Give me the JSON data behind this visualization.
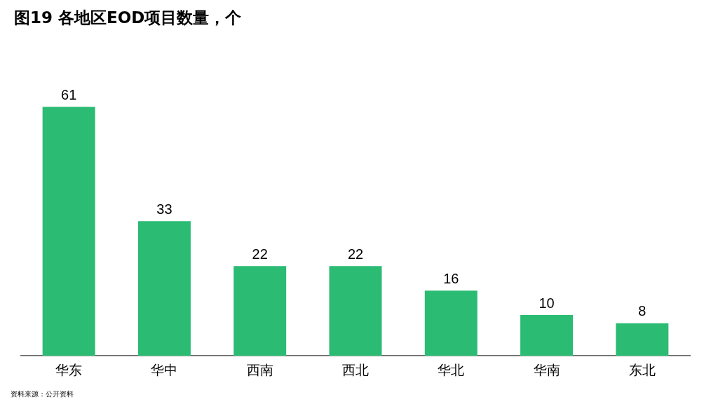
{
  "chart_data": {
    "type": "bar",
    "title": "图19 各地区EOD项目数量，个",
    "categories": [
      "华东",
      "华中",
      "西南",
      "西北",
      "华北",
      "华南",
      "东北"
    ],
    "values": [
      61,
      33,
      22,
      22,
      16,
      10,
      8
    ],
    "color": "#2bbb73",
    "data_labels": true,
    "annotations": [
      "资料来源：公开资料"
    ]
  }
}
